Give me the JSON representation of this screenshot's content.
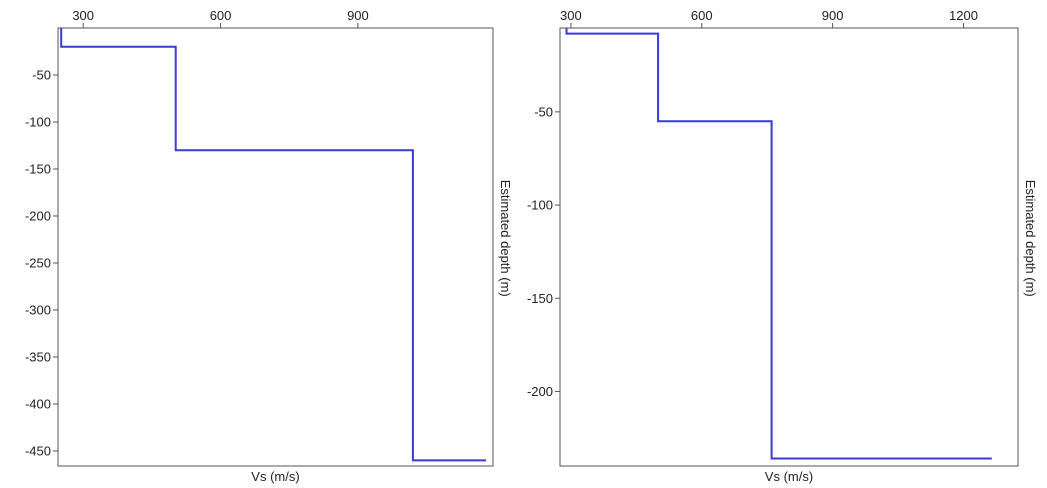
{
  "chart_data": [
    {
      "type": "line",
      "title": "",
      "xlabel": "Vs (m/s)",
      "ylabel": "Estimated depth (m)",
      "xlim": [
        245,
        1195
      ],
      "ylim": [
        -466,
        0
      ],
      "x_ticks": [
        300,
        600,
        900
      ],
      "y_ticks": [
        -50,
        -100,
        -150,
        -200,
        -250,
        -300,
        -350,
        -400,
        -450
      ],
      "grid": false,
      "x_axis_position": "top",
      "y_label_position": "right",
      "series": [
        {
          "name": "",
          "color": "#3a3ad6",
          "x": [
            252,
            252,
            502,
            502,
            1020,
            1020,
            1180
          ],
          "y": [
            0,
            -20,
            -20,
            -130,
            -130,
            -460,
            -460
          ]
        }
      ]
    },
    {
      "type": "line",
      "title": "",
      "xlabel": "Vs (m/s)",
      "ylabel": "Estimated depth (m)",
      "xlim": [
        275,
        1325
      ],
      "ylim": [
        -240,
        -5
      ],
      "x_ticks": [
        300,
        600,
        900,
        1200
      ],
      "y_ticks": [
        -50,
        -100,
        -150,
        -200
      ],
      "grid": false,
      "x_axis_position": "top",
      "y_label_position": "right",
      "series": [
        {
          "name": "",
          "color": "#3a3ad6",
          "x": [
            290,
            290,
            500,
            500,
            760,
            760,
            1265
          ],
          "y": [
            -5,
            -8,
            -8,
            -55,
            -55,
            -236,
            -236
          ]
        }
      ]
    }
  ]
}
